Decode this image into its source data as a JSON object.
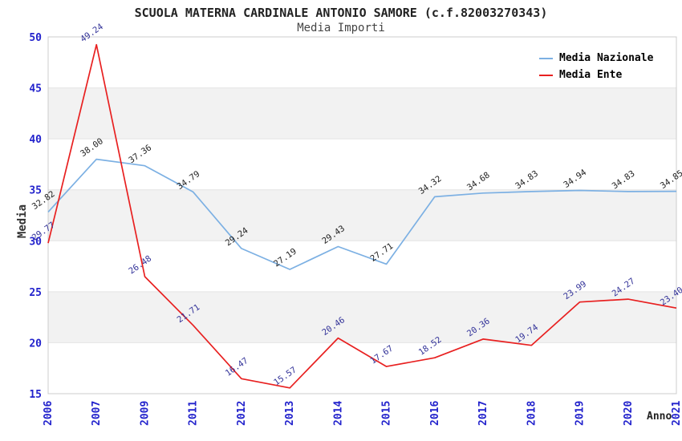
{
  "title": "SCUOLA MATERNA CARDINALE ANTONIO SAMORE (c.f.82003270343)",
  "subtitle": "Media Importi",
  "chart_data": {
    "type": "line",
    "categories": [
      "2006",
      "2007",
      "2009",
      "2011",
      "2012",
      "2013",
      "2014",
      "2015",
      "2016",
      "2017",
      "2018",
      "2019",
      "2020",
      "2021"
    ],
    "series": [
      {
        "name": "Media Nazionale",
        "color": "#7cb0e3",
        "label_color": "#222222",
        "values": [
          32.82,
          38.0,
          37.36,
          34.79,
          29.24,
          27.19,
          29.43,
          27.71,
          34.32,
          34.68,
          34.83,
          34.94,
          34.83,
          34.85
        ]
      },
      {
        "name": "Media Ente",
        "color": "#e82020",
        "label_color": "#333399",
        "values": [
          29.77,
          49.24,
          26.48,
          21.71,
          16.47,
          15.57,
          20.46,
          17.67,
          18.52,
          20.36,
          19.74,
          23.99,
          24.27,
          23.4
        ]
      }
    ],
    "xlabel": "Anno",
    "ylabel": "Media",
    "ylim": [
      15,
      50
    ],
    "ytick_step": 5,
    "grid": "horizontal-bands",
    "legend_position": "top-right",
    "point_labels": "two-decimals, rotated"
  },
  "colors": {
    "axis_tick_label": "#2222cc",
    "band_fill": "#f2f2f2",
    "grid_line": "#e4e4e4",
    "plot_border": "#cccccc",
    "plot_background": "#ffffff"
  }
}
